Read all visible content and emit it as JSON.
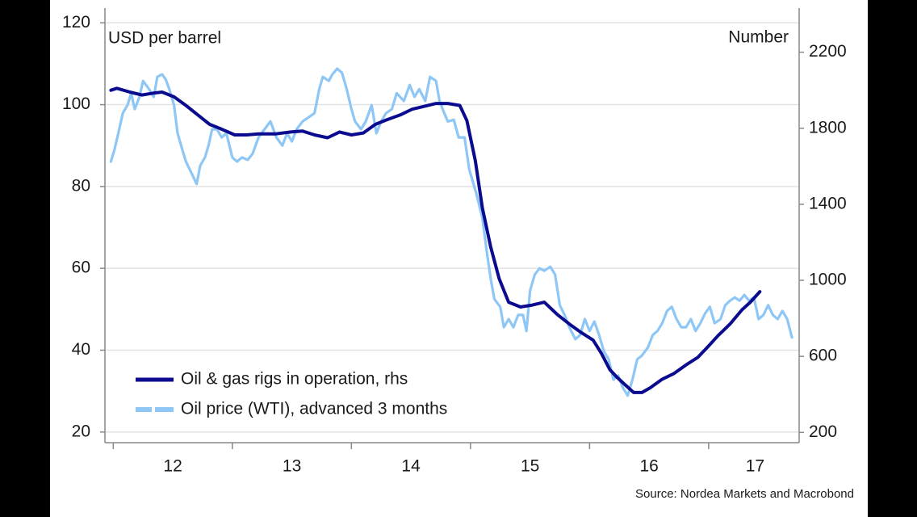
{
  "chart_data": {
    "type": "line",
    "y_axis_label": "USD per barrel",
    "y2_axis_label": "Number",
    "source": "Source: Nordea Markets and Macrobond",
    "xlim": [
      2011.93,
      2017.76
    ],
    "x_tick_marks": [
      2012,
      2013,
      2014,
      2015,
      2016,
      2017
    ],
    "xticks": [
      {
        "value": 2012.5,
        "label": "12"
      },
      {
        "value": 2013.5,
        "label": "13"
      },
      {
        "value": 2014.5,
        "label": "14"
      },
      {
        "value": 2015.5,
        "label": "15"
      },
      {
        "value": 2016.5,
        "label": "16"
      },
      {
        "value": 2017.39,
        "label": "17"
      }
    ],
    "ylim": [
      17.4,
      123.6
    ],
    "yticks": [
      20,
      40,
      60,
      80,
      100,
      120
    ],
    "y2lim": [
      146,
      2432
    ],
    "y2ticks": [
      200,
      600,
      1000,
      1400,
      1800,
      2200
    ],
    "grid": true,
    "legend": "lower left",
    "series": [
      {
        "name": "Oil price (WTI), advanced 3 months",
        "color": "#8ec6f6",
        "axis": "y",
        "x": [
          2011.98,
          2012.01,
          2012.05,
          2012.08,
          2012.12,
          2012.15,
          2012.18,
          2012.22,
          2012.25,
          2012.3,
          2012.34,
          2012.37,
          2012.41,
          2012.44,
          2012.47,
          2012.51,
          2012.54,
          2012.58,
          2012.61,
          2012.66,
          2012.7,
          2012.73,
          2012.77,
          2012.8,
          2012.83,
          2012.87,
          2012.91,
          2012.95,
          2013.0,
          2013.04,
          2013.08,
          2013.13,
          2013.17,
          2013.22,
          2013.27,
          2013.32,
          2013.37,
          2013.42,
          2013.46,
          2013.5,
          2013.54,
          2013.59,
          2013.64,
          2013.69,
          2013.73,
          2013.76,
          2013.81,
          2013.84,
          2013.88,
          2013.92,
          2013.96,
          2014.0,
          2014.03,
          2014.08,
          2014.12,
          2014.17,
          2014.21,
          2014.25,
          2014.29,
          2014.34,
          2014.38,
          2014.44,
          2014.49,
          2014.53,
          2014.57,
          2014.62,
          2014.66,
          2014.71,
          2014.74,
          2014.78,
          2014.81,
          2014.86,
          2014.9,
          2014.95,
          2014.99,
          2015.05,
          2015.1,
          2015.14,
          2015.17,
          2015.2,
          2015.25,
          2015.28,
          2015.32,
          2015.36,
          2015.4,
          2015.44,
          2015.47,
          2015.5,
          2015.54,
          2015.58,
          2015.62,
          2015.67,
          2015.71,
          2015.75,
          2015.79,
          2015.83,
          2015.88,
          2015.92,
          2015.96,
          2016.0,
          2016.04,
          2016.08,
          2016.12,
          2016.16,
          2016.2,
          2016.24,
          2016.28,
          2016.32,
          2016.36,
          2016.4,
          2016.44,
          2016.49,
          2016.53,
          2016.57,
          2016.61,
          2016.65,
          2016.69,
          2016.73,
          2016.77,
          2016.81,
          2016.85,
          2016.89,
          2016.93,
          2016.97,
          2017.01,
          2017.05,
          2017.1,
          2017.14,
          2017.18,
          2017.22,
          2017.26,
          2017.3,
          2017.34,
          2017.38,
          2017.42,
          2017.46,
          2017.5,
          2017.54,
          2017.58,
          2017.62,
          2017.66,
          2017.7
        ],
        "values": [
          86.1,
          89.0,
          94.0,
          97.9,
          99.9,
          102.8,
          98.9,
          101.9,
          105.8,
          103.8,
          101.9,
          106.8,
          107.4,
          106.2,
          103.8,
          99.9,
          93.0,
          89.0,
          86.1,
          83.1,
          80.6,
          85.1,
          87.1,
          90.0,
          94.0,
          94.0,
          92.0,
          93.0,
          87.1,
          86.1,
          87.1,
          86.5,
          88.0,
          92.0,
          94.0,
          95.9,
          92.0,
          90.0,
          93.0,
          91.0,
          94.0,
          95.9,
          96.9,
          97.9,
          103.8,
          106.8,
          105.8,
          107.4,
          108.8,
          107.8,
          103.8,
          98.9,
          95.9,
          94.0,
          95.9,
          99.9,
          93.0,
          95.9,
          97.9,
          98.9,
          102.8,
          100.9,
          104.8,
          101.9,
          103.8,
          100.9,
          106.8,
          105.8,
          100.9,
          97.9,
          95.9,
          96.3,
          92.0,
          92.0,
          84.1,
          78.2,
          72.3,
          63.4,
          57.5,
          52.5,
          50.6,
          45.6,
          47.6,
          45.6,
          48.6,
          48.6,
          44.7,
          54.5,
          58.5,
          60.0,
          59.4,
          60.4,
          58.5,
          51.0,
          48.6,
          45.6,
          42.7,
          43.7,
          47.6,
          44.7,
          47.0,
          43.7,
          39.7,
          37.8,
          32.8,
          33.8,
          30.8,
          28.9,
          32.8,
          37.8,
          38.7,
          40.7,
          43.7,
          44.7,
          46.6,
          49.6,
          50.6,
          47.6,
          45.6,
          45.6,
          47.6,
          44.7,
          46.6,
          49.0,
          50.6,
          46.6,
          47.6,
          51.0,
          52.1,
          52.9,
          52.1,
          53.5,
          52.1,
          52.9,
          47.6,
          48.6,
          51.0,
          48.6,
          47.6,
          49.6,
          47.6,
          43.1
        ]
      },
      {
        "name": "Oil & gas rigs in operation, rhs",
        "color": "#0b0b8f",
        "axis": "y2",
        "x": [
          2011.98,
          2012.03,
          2012.14,
          2012.24,
          2012.34,
          2012.41,
          2012.51,
          2012.61,
          2012.71,
          2012.81,
          2012.91,
          2013.02,
          2013.12,
          2013.22,
          2013.36,
          2013.49,
          2013.59,
          2013.69,
          2013.8,
          2013.9,
          2014.0,
          2014.1,
          2014.2,
          2014.3,
          2014.41,
          2014.51,
          2014.61,
          2014.71,
          2014.81,
          2014.91,
          2014.97,
          2015.04,
          2015.1,
          2015.17,
          2015.24,
          2015.32,
          2015.42,
          2015.52,
          2015.62,
          2015.73,
          2015.83,
          2015.93,
          2016.03,
          2016.1,
          2016.17,
          2016.23,
          2016.3,
          2016.37,
          2016.44,
          2016.51,
          2016.61,
          2016.71,
          2016.81,
          2016.91,
          2017.0,
          2017.08,
          2017.18,
          2017.28,
          2017.35,
          2017.43
        ],
        "values": [
          2000,
          2010,
          1990,
          1975,
          1985,
          1990,
          1965,
          1920,
          1870,
          1820,
          1795,
          1765,
          1765,
          1770,
          1770,
          1780,
          1785,
          1765,
          1750,
          1780,
          1765,
          1775,
          1820,
          1845,
          1870,
          1900,
          1915,
          1930,
          1930,
          1920,
          1840,
          1630,
          1380,
          1175,
          1010,
          885,
          860,
          870,
          885,
          820,
          770,
          725,
          685,
          615,
          530,
          490,
          450,
          410,
          410,
          435,
          480,
          510,
          555,
          595,
          655,
          710,
          770,
          845,
          885,
          940
        ]
      }
    ]
  }
}
